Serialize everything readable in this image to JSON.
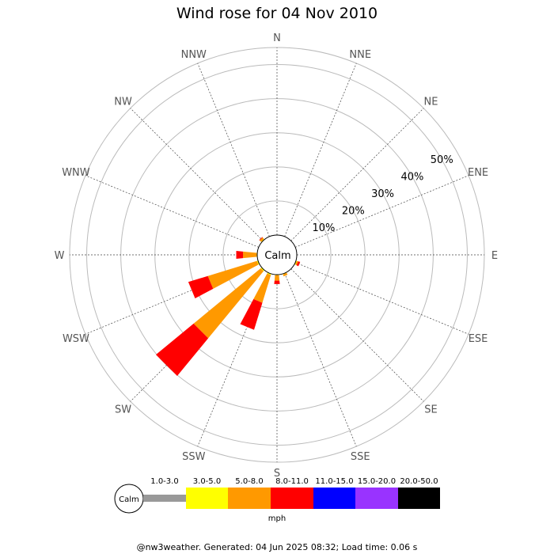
{
  "chart_data": {
    "type": "wind-rose",
    "title": "Wind rose for 04 Nov 2010",
    "directions": [
      "N",
      "NNE",
      "NE",
      "ENE",
      "E",
      "ESE",
      "SE",
      "SSE",
      "S",
      "SSW",
      "SW",
      "WSW",
      "W",
      "WNW",
      "NW",
      "NNW"
    ],
    "radial_ticks": [
      "10%",
      "20%",
      "30%",
      "40%",
      "50%"
    ],
    "radial_max": 55,
    "calm_label": "Calm",
    "unit": "mph",
    "speed_bins": [
      {
        "label": "1.0-3.0",
        "color": "#999999"
      },
      {
        "label": "3.0-5.0",
        "color": "#ffff00"
      },
      {
        "label": "5.0-8.0",
        "color": "#ff9900"
      },
      {
        "label": "8.0-11.0",
        "color": "#ff0000"
      },
      {
        "label": "11.0-15.0",
        "color": "#0000ff"
      },
      {
        "label": "15.0-20.0",
        "color": "#9933ff"
      },
      {
        "label": "20.0-50.0",
        "color": "#000000"
      }
    ],
    "series": [
      {
        "direction": "NW",
        "segments": [
          0,
          0.2,
          0.6,
          0.2,
          0,
          0,
          0
        ]
      },
      {
        "direction": "W",
        "segments": [
          0,
          0.2,
          4.0,
          2.0,
          0,
          0,
          0
        ]
      },
      {
        "direction": "WSW",
        "segments": [
          0,
          0.4,
          15.0,
          6.0,
          0,
          0,
          0
        ]
      },
      {
        "direction": "SW",
        "segments": [
          0,
          0.4,
          25.5,
          14.3,
          0,
          0,
          0
        ]
      },
      {
        "direction": "SSW",
        "segments": [
          0,
          0.4,
          8.5,
          8.3,
          0,
          0,
          0
        ]
      },
      {
        "direction": "S",
        "segments": [
          0,
          0.2,
          1.6,
          1.0,
          0,
          0,
          0
        ]
      },
      {
        "direction": "SSE",
        "segments": [
          0,
          0.2,
          0.6,
          0,
          0,
          0,
          0
        ]
      },
      {
        "direction": "ESE",
        "segments": [
          0,
          0.3,
          0.4,
          0.6,
          0,
          0,
          0
        ]
      }
    ]
  },
  "footer": "@nw3weather. Generated: 04 Jun 2025 08:32; Load time: 0.06 s"
}
